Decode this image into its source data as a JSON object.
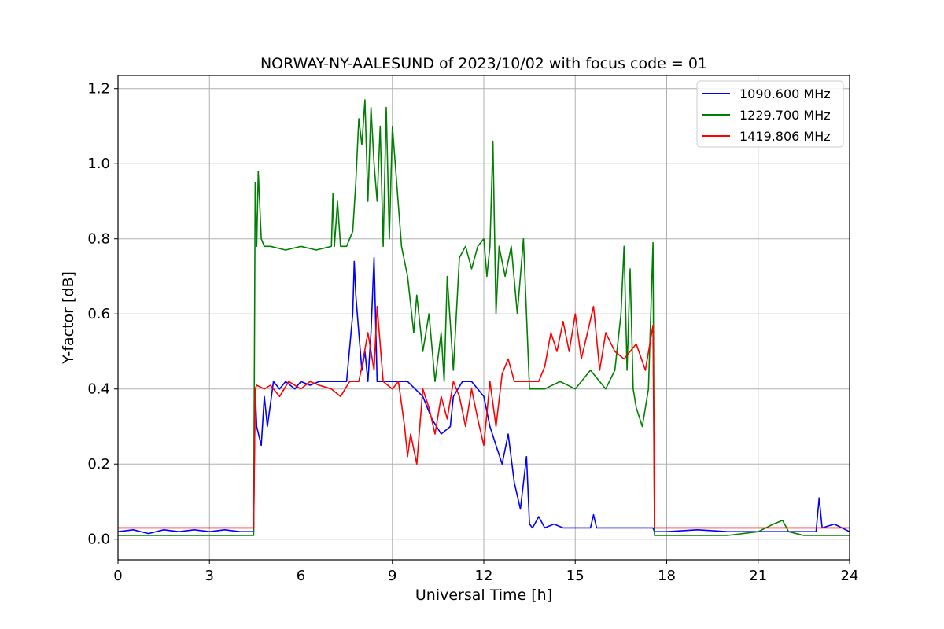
{
  "chart_data": {
    "type": "line",
    "title": "NORWAY-NY-AALESUND of 2023/10/02 with focus code = 01",
    "xlabel": "Universal Time [h]",
    "ylabel": "Y-factor [dB]",
    "xlim": [
      0,
      24
    ],
    "ylim": [
      -0.055,
      1.235
    ],
    "xticks": [
      "0",
      "3",
      "6",
      "9",
      "12",
      "15",
      "18",
      "21",
      "24"
    ],
    "yticks": [
      "0.0",
      "0.2",
      "0.4",
      "0.6",
      "0.8",
      "1.0",
      "1.2"
    ],
    "grid": true,
    "legend_position": "top-right",
    "series": [
      {
        "name": "1090.600 MHz",
        "color": "#0000ff",
        "x": [
          0,
          0.5,
          1.0,
          1.5,
          2.0,
          2.5,
          3.0,
          3.5,
          4.0,
          4.45,
          4.5,
          4.55,
          4.7,
          4.8,
          4.9,
          5.0,
          5.1,
          5.3,
          5.5,
          5.8,
          6.0,
          6.3,
          6.6,
          7.0,
          7.5,
          7.7,
          7.75,
          7.8,
          7.9,
          8.0,
          8.1,
          8.2,
          8.3,
          8.4,
          8.5,
          8.6,
          9.0,
          9.5,
          10.0,
          10.3,
          10.6,
          10.9,
          11.0,
          11.3,
          11.6,
          12.0,
          12.2,
          12.4,
          12.6,
          12.8,
          13.0,
          13.2,
          13.4,
          13.5,
          13.6,
          13.8,
          14.0,
          14.3,
          14.6,
          15.0,
          15.5,
          15.6,
          15.7,
          16.0,
          17.0,
          17.55,
          17.6,
          18.0,
          19.0,
          20.0,
          21.0,
          22.0,
          22.9,
          23.0,
          23.1,
          23.5,
          24.0
        ],
        "y": [
          0.02,
          0.025,
          0.015,
          0.025,
          0.02,
          0.025,
          0.02,
          0.025,
          0.02,
          0.02,
          0.4,
          0.3,
          0.25,
          0.38,
          0.3,
          0.36,
          0.42,
          0.4,
          0.42,
          0.4,
          0.42,
          0.41,
          0.42,
          0.42,
          0.42,
          0.6,
          0.74,
          0.65,
          0.55,
          0.45,
          0.5,
          0.42,
          0.55,
          0.75,
          0.42,
          0.42,
          0.42,
          0.42,
          0.38,
          0.32,
          0.28,
          0.3,
          0.38,
          0.42,
          0.42,
          0.38,
          0.3,
          0.25,
          0.2,
          0.28,
          0.15,
          0.08,
          0.22,
          0.04,
          0.03,
          0.06,
          0.03,
          0.04,
          0.03,
          0.03,
          0.03,
          0.065,
          0.03,
          0.03,
          0.03,
          0.03,
          0.02,
          0.02,
          0.025,
          0.02,
          0.02,
          0.02,
          0.02,
          0.11,
          0.03,
          0.04,
          0.02
        ]
      },
      {
        "name": "1229.700 MHz",
        "color": "#008000",
        "x": [
          0,
          0.5,
          1.0,
          1.5,
          2.0,
          2.5,
          3.0,
          3.5,
          4.0,
          4.45,
          4.5,
          4.55,
          4.6,
          4.7,
          4.8,
          5.0,
          5.5,
          6.0,
          6.5,
          7.0,
          7.05,
          7.1,
          7.2,
          7.3,
          7.5,
          7.7,
          7.8,
          7.9,
          8.0,
          8.1,
          8.2,
          8.3,
          8.4,
          8.5,
          8.6,
          8.7,
          8.8,
          8.9,
          9.0,
          9.3,
          9.5,
          9.7,
          9.8,
          10.0,
          10.2,
          10.4,
          10.6,
          10.7,
          10.8,
          11.0,
          11.2,
          11.4,
          11.6,
          11.8,
          12.0,
          12.1,
          12.2,
          12.3,
          12.4,
          12.5,
          12.7,
          12.9,
          13.1,
          13.3,
          13.5,
          14.0,
          14.5,
          15.0,
          15.5,
          16.0,
          16.3,
          16.5,
          16.6,
          16.7,
          16.8,
          16.9,
          17.0,
          17.2,
          17.4,
          17.55,
          17.6,
          18.0,
          19.0,
          20.0,
          21.0,
          21.5,
          21.8,
          22.0,
          22.5,
          23.0,
          24.0
        ],
        "y": [
          0.01,
          0.01,
          0.01,
          0.01,
          0.01,
          0.01,
          0.01,
          0.01,
          0.01,
          0.01,
          0.95,
          0.78,
          0.98,
          0.8,
          0.78,
          0.78,
          0.77,
          0.78,
          0.77,
          0.78,
          0.92,
          0.78,
          0.9,
          0.78,
          0.78,
          0.82,
          0.95,
          1.12,
          1.05,
          1.17,
          0.9,
          1.15,
          1.0,
          0.9,
          1.1,
          0.78,
          1.15,
          0.8,
          1.1,
          0.78,
          0.7,
          0.55,
          0.65,
          0.5,
          0.6,
          0.42,
          0.55,
          0.42,
          0.7,
          0.45,
          0.75,
          0.78,
          0.72,
          0.78,
          0.8,
          0.7,
          0.78,
          1.06,
          0.6,
          0.78,
          0.7,
          0.78,
          0.6,
          0.8,
          0.4,
          0.4,
          0.42,
          0.4,
          0.45,
          0.4,
          0.45,
          0.6,
          0.78,
          0.45,
          0.72,
          0.4,
          0.35,
          0.3,
          0.4,
          0.79,
          0.01,
          0.01,
          0.01,
          0.01,
          0.02,
          0.04,
          0.05,
          0.02,
          0.01,
          0.01,
          0.01
        ]
      },
      {
        "name": "1419.806 MHz",
        "color": "#ff0000",
        "x": [
          0,
          0.5,
          1.0,
          1.5,
          2.0,
          2.5,
          3.0,
          3.5,
          4.0,
          4.45,
          4.5,
          4.55,
          4.8,
          5.0,
          5.3,
          5.6,
          6.0,
          6.3,
          6.6,
          7.0,
          7.3,
          7.6,
          7.9,
          8.0,
          8.2,
          8.4,
          8.5,
          8.7,
          9.0,
          9.2,
          9.4,
          9.5,
          9.6,
          9.8,
          10.0,
          10.2,
          10.4,
          10.6,
          10.8,
          11.0,
          11.2,
          11.4,
          11.6,
          11.8,
          12.0,
          12.2,
          12.4,
          12.6,
          12.8,
          13.0,
          13.4,
          13.8,
          14.0,
          14.2,
          14.4,
          14.6,
          14.8,
          15.0,
          15.2,
          15.4,
          15.6,
          15.8,
          16.0,
          16.3,
          16.6,
          17.0,
          17.3,
          17.55,
          17.6,
          18.0,
          19.0,
          20.0,
          21.0,
          22.0,
          23.0,
          24.0
        ],
        "y": [
          0.03,
          0.03,
          0.03,
          0.03,
          0.03,
          0.03,
          0.03,
          0.03,
          0.03,
          0.03,
          0.4,
          0.41,
          0.4,
          0.41,
          0.38,
          0.42,
          0.4,
          0.42,
          0.41,
          0.4,
          0.38,
          0.42,
          0.42,
          0.46,
          0.55,
          0.45,
          0.62,
          0.42,
          0.4,
          0.42,
          0.3,
          0.22,
          0.28,
          0.2,
          0.4,
          0.35,
          0.28,
          0.38,
          0.32,
          0.42,
          0.38,
          0.3,
          0.4,
          0.32,
          0.25,
          0.42,
          0.3,
          0.44,
          0.48,
          0.42,
          0.42,
          0.42,
          0.46,
          0.55,
          0.5,
          0.58,
          0.5,
          0.6,
          0.48,
          0.55,
          0.62,
          0.45,
          0.55,
          0.5,
          0.48,
          0.52,
          0.45,
          0.57,
          0.03,
          0.03,
          0.03,
          0.03,
          0.03,
          0.03,
          0.03,
          0.03
        ]
      }
    ]
  }
}
